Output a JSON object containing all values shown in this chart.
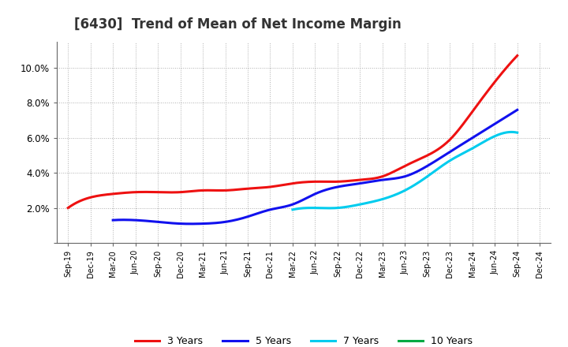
{
  "title": "[6430]  Trend of Mean of Net Income Margin",
  "title_fontsize": 12,
  "x_labels": [
    "Sep-19",
    "Dec-19",
    "Mar-20",
    "Jun-20",
    "Sep-20",
    "Dec-20",
    "Mar-21",
    "Jun-21",
    "Sep-21",
    "Dec-21",
    "Mar-22",
    "Jun-22",
    "Sep-22",
    "Dec-22",
    "Mar-23",
    "Jun-23",
    "Sep-23",
    "Dec-23",
    "Mar-24",
    "Jun-24",
    "Sep-24",
    "Dec-24"
  ],
  "y_ticks": [
    0.0,
    0.02,
    0.04,
    0.06,
    0.08,
    0.1
  ],
  "y_tick_labels": [
    "",
    "2.0%",
    "4.0%",
    "6.0%",
    "8.0%",
    "10.0%"
  ],
  "ylim": [
    0.0,
    0.115
  ],
  "series": {
    "3 Years": {
      "color": "#ee1111",
      "values": [
        0.02,
        0.026,
        0.028,
        0.029,
        0.029,
        0.029,
        0.03,
        0.03,
        0.031,
        0.032,
        0.034,
        0.035,
        0.035,
        0.036,
        0.038,
        0.044,
        0.05,
        0.059,
        0.075,
        0.092,
        0.107,
        null
      ]
    },
    "5 Years": {
      "color": "#1111ee",
      "values": [
        null,
        null,
        0.013,
        0.013,
        0.012,
        0.011,
        0.011,
        0.012,
        0.015,
        0.019,
        0.022,
        0.028,
        0.032,
        0.034,
        0.036,
        0.038,
        0.044,
        0.052,
        0.06,
        0.068,
        0.076,
        null
      ]
    },
    "7 Years": {
      "color": "#00ccee",
      "values": [
        null,
        null,
        null,
        null,
        null,
        null,
        null,
        null,
        null,
        null,
        0.019,
        0.02,
        0.02,
        0.022,
        0.025,
        0.03,
        0.038,
        0.047,
        0.054,
        0.061,
        0.063,
        null
      ]
    },
    "10 Years": {
      "color": "#00aa44",
      "values": [
        null,
        null,
        null,
        null,
        null,
        null,
        null,
        null,
        null,
        null,
        null,
        null,
        null,
        null,
        null,
        null,
        null,
        null,
        null,
        null,
        null,
        null
      ]
    }
  },
  "legend_order": [
    "3 Years",
    "5 Years",
    "7 Years",
    "10 Years"
  ],
  "background_color": "#ffffff",
  "plot_bg_color": "#ffffff",
  "grid_color": "#999999",
  "linewidth": 2.2
}
